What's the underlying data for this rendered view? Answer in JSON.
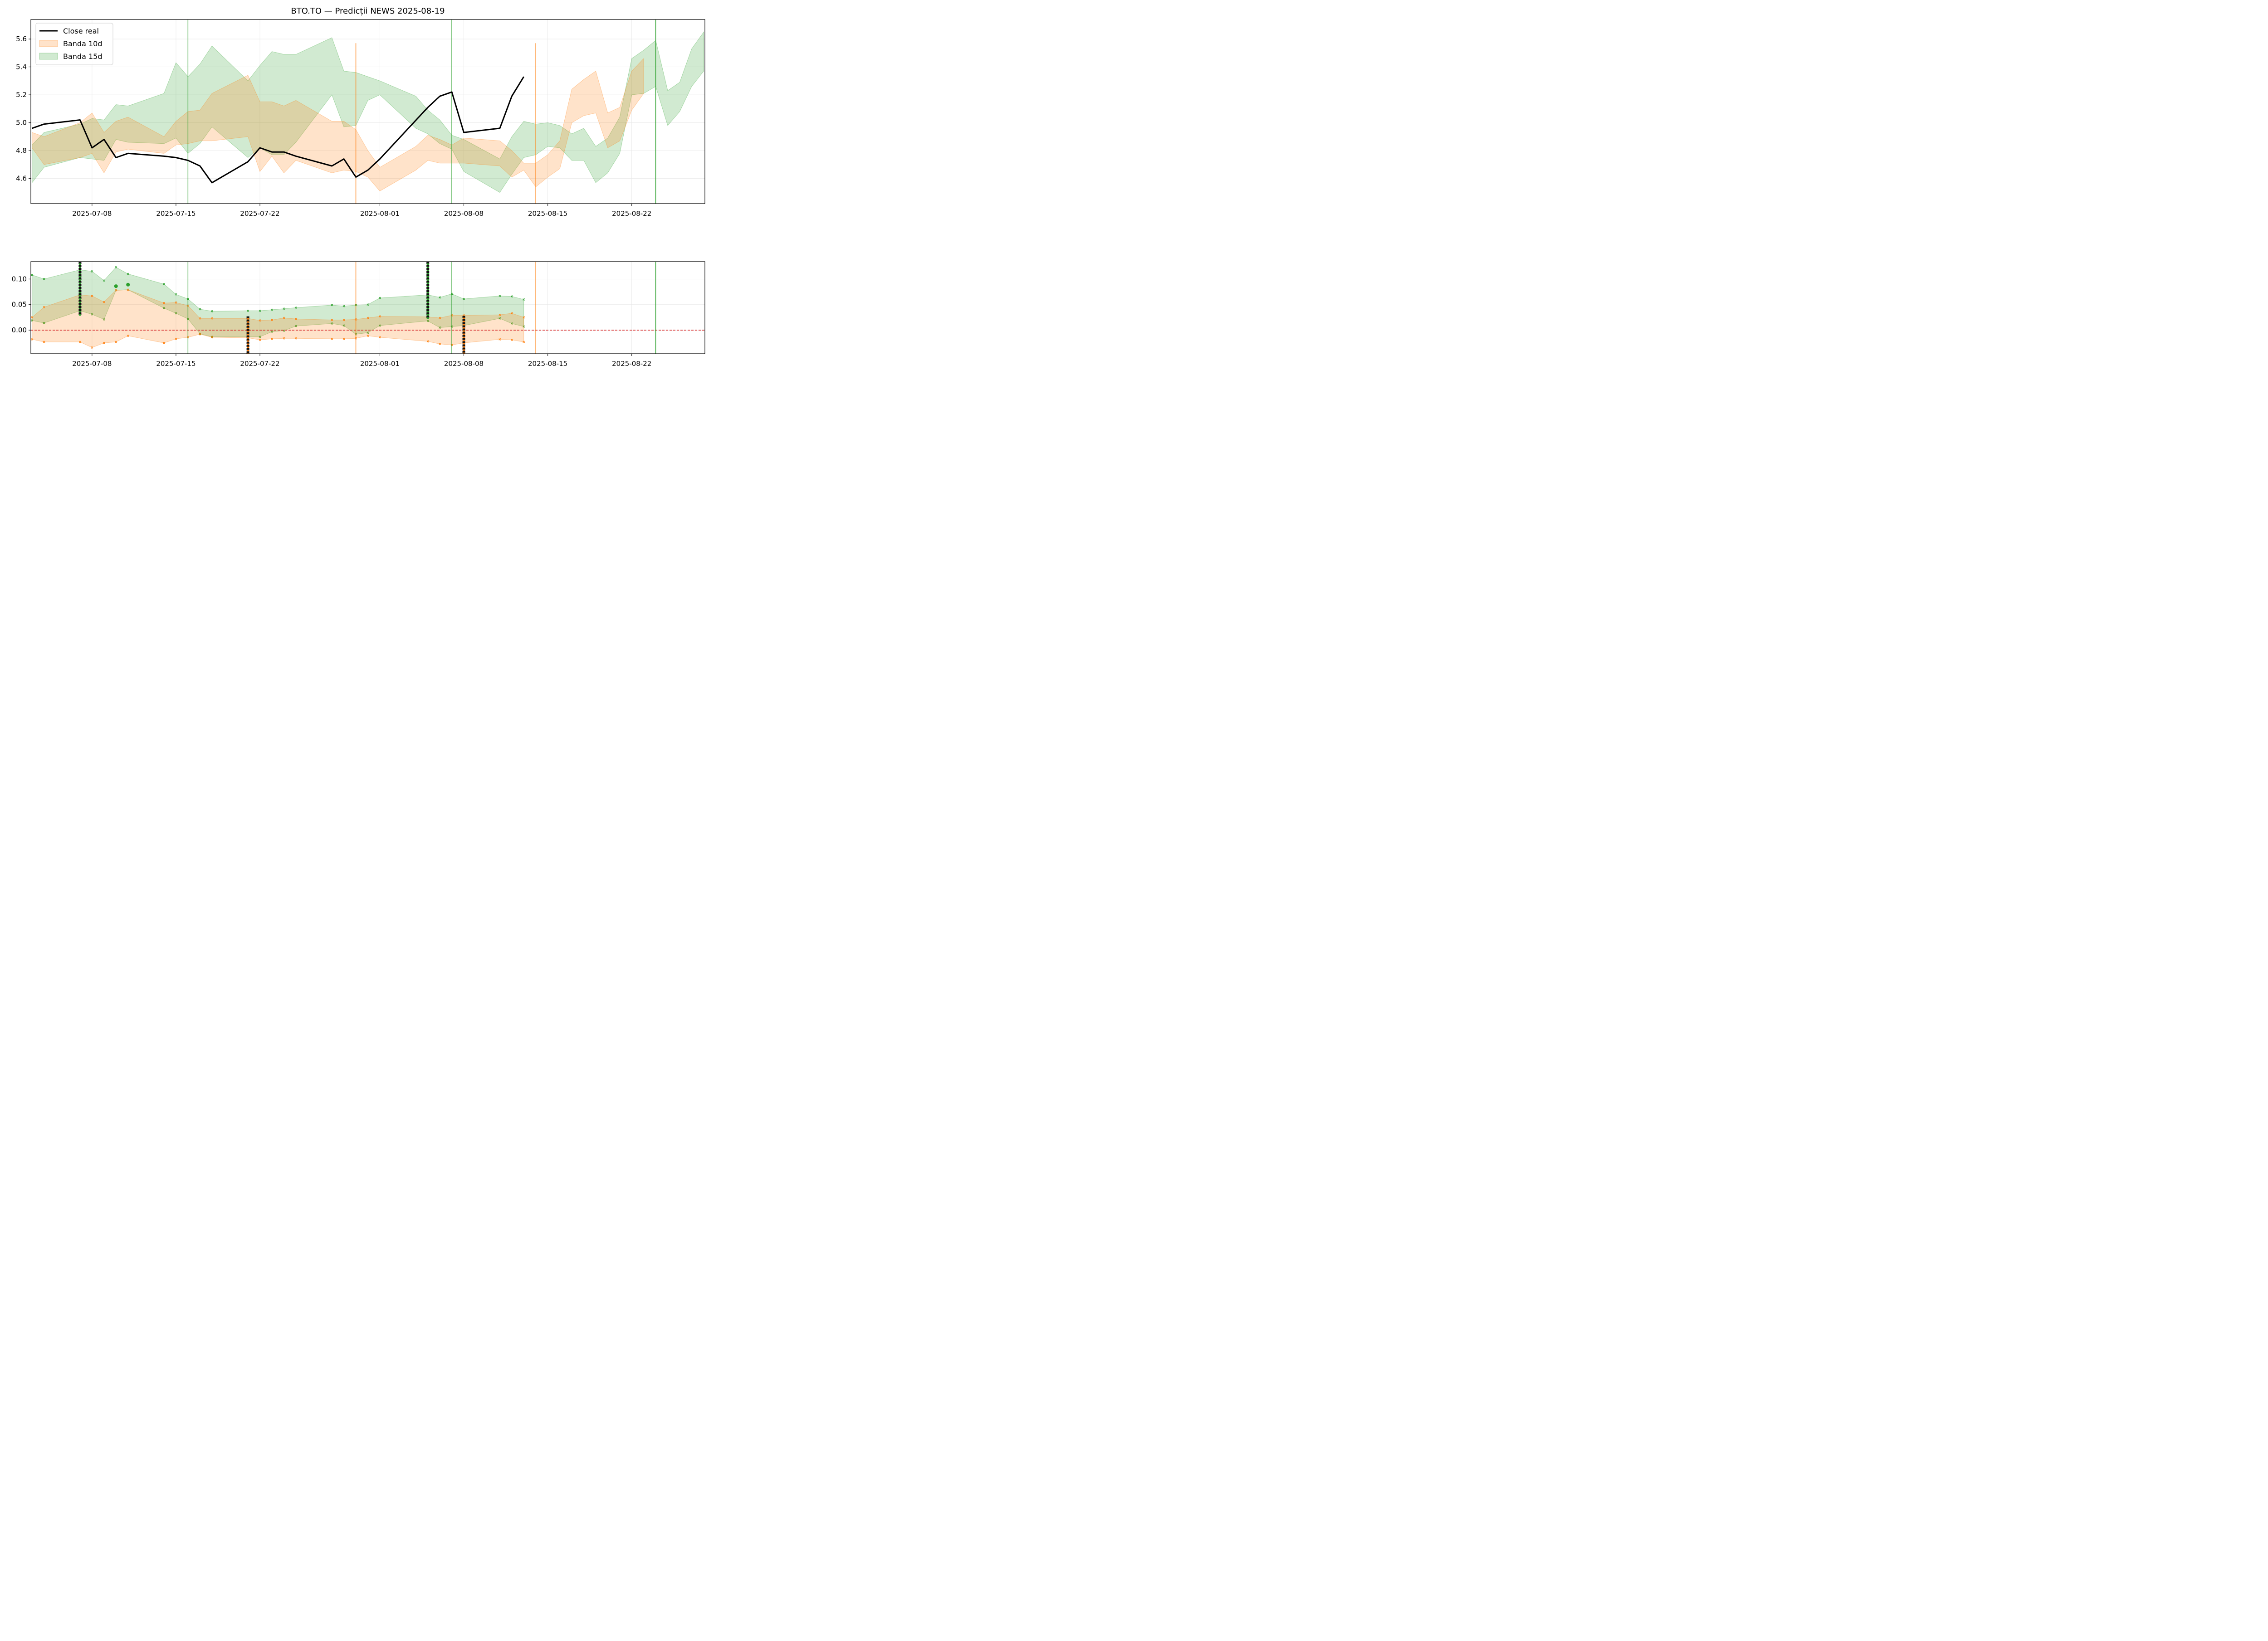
{
  "chart_data": [
    {
      "type": "area",
      "title": "BTO.TO — Predicții NEWS 2025-08-19",
      "xlabel": "",
      "ylabel": "",
      "x_range": [
        "2025-07-03",
        "2025-08-28"
      ],
      "ylim": [
        4.42,
        5.74
      ],
      "x_ticks": [
        "2025-07-08",
        "2025-07-15",
        "2025-07-22",
        "2025-08-01",
        "2025-08-08",
        "2025-08-15",
        "2025-08-22"
      ],
      "y_ticks": [
        4.6,
        4.8,
        5.0,
        5.2,
        5.4,
        5.6
      ],
      "grid": true,
      "legend": {
        "placement": "top-left",
        "entries": [
          {
            "label": "Close real",
            "color": "#000000",
            "kind": "line"
          },
          {
            "label": "Banda 10d",
            "color": "#ff7f0e",
            "kind": "band"
          },
          {
            "label": "Banda 15d",
            "color": "#2ca02c",
            "kind": "band"
          }
        ]
      },
      "series": [
        {
          "name": "Close real",
          "color": "#000000",
          "x": [
            "2025-07-03",
            "2025-07-04",
            "2025-07-07",
            "2025-07-08",
            "2025-07-09",
            "2025-07-10",
            "2025-07-11",
            "2025-07-14",
            "2025-07-15",
            "2025-07-16",
            "2025-07-17",
            "2025-07-18",
            "2025-07-21",
            "2025-07-22",
            "2025-07-23",
            "2025-07-24",
            "2025-07-25",
            "2025-07-28",
            "2025-07-29",
            "2025-07-30",
            "2025-07-31",
            "2025-08-01",
            "2025-08-05",
            "2025-08-06",
            "2025-08-07",
            "2025-08-08",
            "2025-08-11",
            "2025-08-12",
            "2025-08-13"
          ],
          "y": [
            4.96,
            4.99,
            5.02,
            4.82,
            4.88,
            4.75,
            4.78,
            4.76,
            4.75,
            4.73,
            4.69,
            4.57,
            4.72,
            4.82,
            4.79,
            4.79,
            4.76,
            4.69,
            4.74,
            4.61,
            4.66,
            4.74,
            5.11,
            5.19,
            5.22,
            4.93,
            4.96,
            5.19,
            5.33
          ]
        },
        {
          "name": "Banda 10d",
          "color": "#ff7f0e",
          "x": [
            "2025-07-03",
            "2025-07-04",
            "2025-07-07",
            "2025-07-08",
            "2025-07-09",
            "2025-07-10",
            "2025-07-11",
            "2025-07-14",
            "2025-07-15",
            "2025-07-16",
            "2025-07-17",
            "2025-07-18",
            "2025-07-21",
            "2025-07-22",
            "2025-07-23",
            "2025-07-24",
            "2025-07-25",
            "2025-07-28",
            "2025-07-29",
            "2025-07-30",
            "2025-07-31",
            "2025-08-01",
            "2025-08-04",
            "2025-08-05",
            "2025-08-06",
            "2025-08-07",
            "2025-08-08",
            "2025-08-11",
            "2025-08-12",
            "2025-08-13",
            "2025-08-14",
            "2025-08-15",
            "2025-08-16",
            "2025-08-17",
            "2025-08-18",
            "2025-08-19",
            "2025-08-20",
            "2025-08-21",
            "2025-08-22",
            "2025-08-23"
          ],
          "upper": [
            4.93,
            4.9,
            5.0,
            5.07,
            4.93,
            5.01,
            5.04,
            4.9,
            5.01,
            5.08,
            5.09,
            5.21,
            5.34,
            5.15,
            5.15,
            5.12,
            5.16,
            5.01,
            5.01,
            4.95,
            4.8,
            4.68,
            4.83,
            4.91,
            4.88,
            4.84,
            4.89,
            4.87,
            4.8,
            4.71,
            4.71,
            4.77,
            4.87,
            5.24,
            5.31,
            5.37,
            5.07,
            5.11,
            5.37,
            5.46
          ],
          "lower": [
            4.82,
            4.7,
            4.75,
            4.78,
            4.64,
            4.79,
            4.81,
            4.78,
            4.84,
            4.85,
            4.87,
            4.87,
            4.9,
            4.65,
            4.76,
            4.64,
            4.73,
            4.64,
            4.66,
            4.65,
            4.61,
            4.51,
            4.66,
            4.73,
            4.71,
            4.71,
            4.71,
            4.69,
            4.61,
            4.66,
            4.54,
            4.61,
            4.67,
            5.0,
            5.05,
            5.07,
            4.82,
            4.87,
            5.09,
            5.21
          ]
        },
        {
          "name": "Banda 15d",
          "color": "#2ca02c",
          "x": [
            "2025-07-03",
            "2025-07-04",
            "2025-07-07",
            "2025-07-08",
            "2025-07-09",
            "2025-07-10",
            "2025-07-11",
            "2025-07-14",
            "2025-07-15",
            "2025-07-16",
            "2025-07-17",
            "2025-07-18",
            "2025-07-21",
            "2025-07-22",
            "2025-07-23",
            "2025-07-24",
            "2025-07-25",
            "2025-07-28",
            "2025-07-29",
            "2025-07-30",
            "2025-07-31",
            "2025-08-01",
            "2025-08-04",
            "2025-08-05",
            "2025-08-06",
            "2025-08-07",
            "2025-08-08",
            "2025-08-11",
            "2025-08-12",
            "2025-08-13",
            "2025-08-14",
            "2025-08-15",
            "2025-08-16",
            "2025-08-17",
            "2025-08-18",
            "2025-08-19",
            "2025-08-20",
            "2025-08-21",
            "2025-08-22",
            "2025-08-23",
            "2025-08-24",
            "2025-08-25",
            "2025-08-26",
            "2025-08-27",
            "2025-08-28"
          ],
          "upper": [
            4.84,
            4.93,
            4.99,
            5.03,
            5.02,
            5.13,
            5.12,
            5.21,
            5.43,
            5.33,
            5.42,
            5.55,
            5.3,
            5.41,
            5.51,
            5.49,
            5.49,
            5.61,
            5.37,
            5.36,
            5.33,
            5.3,
            5.19,
            5.09,
            5.02,
            4.91,
            4.88,
            4.74,
            4.9,
            5.01,
            4.99,
            5.0,
            4.98,
            4.92,
            4.96,
            4.83,
            4.89,
            5.04,
            5.46,
            5.52,
            5.59,
            5.23,
            5.29,
            5.53,
            5.65
          ],
          "lower": [
            4.57,
            4.68,
            4.75,
            4.74,
            4.73,
            4.88,
            4.86,
            4.85,
            4.89,
            4.78,
            4.85,
            4.97,
            4.75,
            4.82,
            4.77,
            4.77,
            4.86,
            5.2,
            4.97,
            4.98,
            5.16,
            5.2,
            4.96,
            4.92,
            4.85,
            4.81,
            4.65,
            4.5,
            4.63,
            4.75,
            4.77,
            4.83,
            4.82,
            4.73,
            4.73,
            4.57,
            4.64,
            4.78,
            5.2,
            5.21,
            5.26,
            4.98,
            5.08,
            5.26,
            5.37
          ]
        }
      ],
      "vertical_lines": [
        {
          "x": "2025-07-16",
          "color": "#2ca02c",
          "ymax": "top"
        },
        {
          "x": "2025-07-30",
          "color": "#ff7f0e",
          "ymax": 5.57
        },
        {
          "x": "2025-08-07",
          "color": "#2ca02c",
          "ymax": "top"
        },
        {
          "x": "2025-08-14",
          "color": "#ff7f0e",
          "ymax": 5.57
        },
        {
          "x": "2025-08-24",
          "color": "#2ca02c",
          "ymax": "top"
        }
      ]
    },
    {
      "type": "area",
      "title": "",
      "xlabel": "",
      "ylabel": "",
      "x_range": [
        "2025-07-03",
        "2025-08-28"
      ],
      "ylim": [
        -0.046,
        0.134
      ],
      "x_ticks": [
        "2025-07-08",
        "2025-07-15",
        "2025-07-22",
        "2025-08-01",
        "2025-08-08",
        "2025-08-15",
        "2025-08-22"
      ],
      "y_ticks": [
        0.0,
        0.05,
        0.1
      ],
      "y_tick_labels": [
        "0.00",
        "0.05",
        "0.10"
      ],
      "grid": true,
      "reference_line": {
        "y": 0.0,
        "color": "#d62728",
        "style": "dashed"
      },
      "series": [
        {
          "name": "",
          "color": "#2ca02c",
          "x": [
            "2025-07-03",
            "2025-07-04",
            "2025-07-07",
            "2025-07-08",
            "2025-07-09",
            "2025-07-10",
            "2025-07-11",
            "2025-07-14",
            "2025-07-15",
            "2025-07-16",
            "2025-07-17",
            "2025-07-18",
            "2025-07-21",
            "2025-07-22",
            "2025-07-23",
            "2025-07-24",
            "2025-07-25",
            "2025-07-28",
            "2025-07-29",
            "2025-07-30",
            "2025-07-31",
            "2025-08-01",
            "2025-08-05",
            "2025-08-06",
            "2025-08-07",
            "2025-08-08",
            "2025-08-11",
            "2025-08-12",
            "2025-08-13"
          ],
          "upper": [
            0.108,
            0.1,
            0.118,
            0.115,
            0.097,
            0.123,
            0.11,
            0.09,
            0.07,
            0.061,
            0.041,
            0.037,
            0.038,
            0.038,
            0.04,
            0.042,
            0.044,
            0.049,
            0.047,
            0.049,
            0.05,
            0.063,
            0.069,
            0.064,
            0.071,
            0.061,
            0.067,
            0.066,
            0.06
          ],
          "lower": [
            0.019,
            0.014,
            0.038,
            0.031,
            0.021,
            0.078,
            0.079,
            0.043,
            0.033,
            0.022,
            -0.007,
            -0.013,
            -0.013,
            -0.013,
            -0.003,
            -0.001,
            0.008,
            0.013,
            0.009,
            -0.008,
            -0.005,
            0.009,
            0.018,
            0.005,
            0.007,
            0.009,
            0.023,
            0.013,
            0.007
          ]
        },
        {
          "name": "",
          "color": "#ff7f0e",
          "x": [
            "2025-07-03",
            "2025-07-04",
            "2025-07-07",
            "2025-07-08",
            "2025-07-09",
            "2025-07-10",
            "2025-07-11",
            "2025-07-14",
            "2025-07-15",
            "2025-07-16",
            "2025-07-17",
            "2025-07-18",
            "2025-07-21",
            "2025-07-22",
            "2025-07-23",
            "2025-07-24",
            "2025-07-25",
            "2025-07-28",
            "2025-07-29",
            "2025-07-30",
            "2025-07-31",
            "2025-08-01",
            "2025-08-05",
            "2025-08-06",
            "2025-08-07",
            "2025-08-08",
            "2025-08-11",
            "2025-08-12",
            "2025-08-13"
          ],
          "upper": [
            0.025,
            0.045,
            0.069,
            0.067,
            0.055,
            0.078,
            0.079,
            0.053,
            0.054,
            0.048,
            0.023,
            0.023,
            0.023,
            0.019,
            0.02,
            0.024,
            0.022,
            0.02,
            0.02,
            0.021,
            0.024,
            0.027,
            0.026,
            0.024,
            0.029,
            0.029,
            0.03,
            0.033,
            0.025
          ],
          "lower": [
            -0.018,
            -0.023,
            -0.023,
            -0.034,
            -0.025,
            -0.023,
            -0.011,
            -0.025,
            -0.017,
            -0.014,
            -0.008,
            -0.014,
            -0.015,
            -0.019,
            -0.017,
            -0.016,
            -0.016,
            -0.017,
            -0.017,
            -0.016,
            -0.011,
            -0.014,
            -0.022,
            -0.027,
            -0.029,
            -0.025,
            -0.018,
            -0.019,
            -0.023
          ]
        }
      ],
      "highlight_points": [
        {
          "x": "2025-07-10",
          "y": 0.086,
          "color": "#2ca02c"
        },
        {
          "x": "2025-07-11",
          "y": 0.089,
          "color": "#2ca02c"
        }
      ],
      "signal_columns": [
        {
          "x": "2025-07-07",
          "from": 0.025,
          "to": 0.134,
          "kind": "up"
        },
        {
          "x": "2025-07-21",
          "from": -0.046,
          "to": 0.027,
          "kind": "down"
        },
        {
          "x": "2025-08-05",
          "from": 0.018,
          "to": 0.134,
          "kind": "up"
        },
        {
          "x": "2025-08-08",
          "from": -0.046,
          "to": 0.028,
          "kind": "down"
        }
      ],
      "vertical_lines": [
        {
          "x": "2025-07-16",
          "color": "#2ca02c"
        },
        {
          "x": "2025-07-30",
          "color": "#ff7f0e"
        },
        {
          "x": "2025-08-07",
          "color": "#2ca02c"
        },
        {
          "x": "2025-08-14",
          "color": "#ff7f0e"
        },
        {
          "x": "2025-08-24",
          "color": "#2ca02c"
        }
      ]
    }
  ]
}
